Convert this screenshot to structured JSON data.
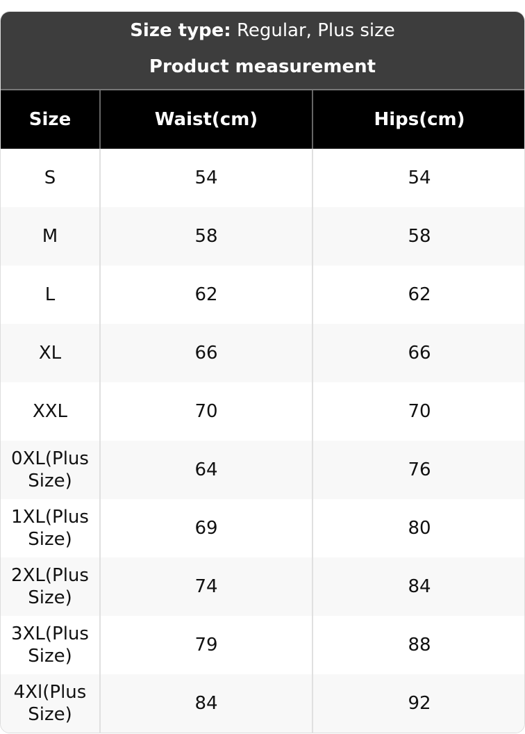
{
  "header": {
    "size_type_label": "Size type:",
    "size_type_value": "Regular, Plus size",
    "title": "Product measurement"
  },
  "table": {
    "columns": [
      "Size",
      "Waist(cm)",
      "Hips(cm)"
    ],
    "rows": [
      [
        "S",
        "54",
        "54"
      ],
      [
        "M",
        "58",
        "58"
      ],
      [
        "L",
        "62",
        "62"
      ],
      [
        "XL",
        "66",
        "66"
      ],
      [
        "XXL",
        "70",
        "70"
      ],
      [
        "0XL(Plus Size)",
        "64",
        "76"
      ],
      [
        "1XL(Plus Size)",
        "69",
        "80"
      ],
      [
        "2XL(Plus Size)",
        "74",
        "84"
      ],
      [
        "3XL(Plus Size)",
        "79",
        "88"
      ],
      [
        "4Xl(Plus Size)",
        "84",
        "92"
      ]
    ]
  },
  "colors": {
    "header_bg": "#3d3d3d",
    "column_header_bg": "#000000",
    "alt_row_bg": "#f8f8f8"
  }
}
